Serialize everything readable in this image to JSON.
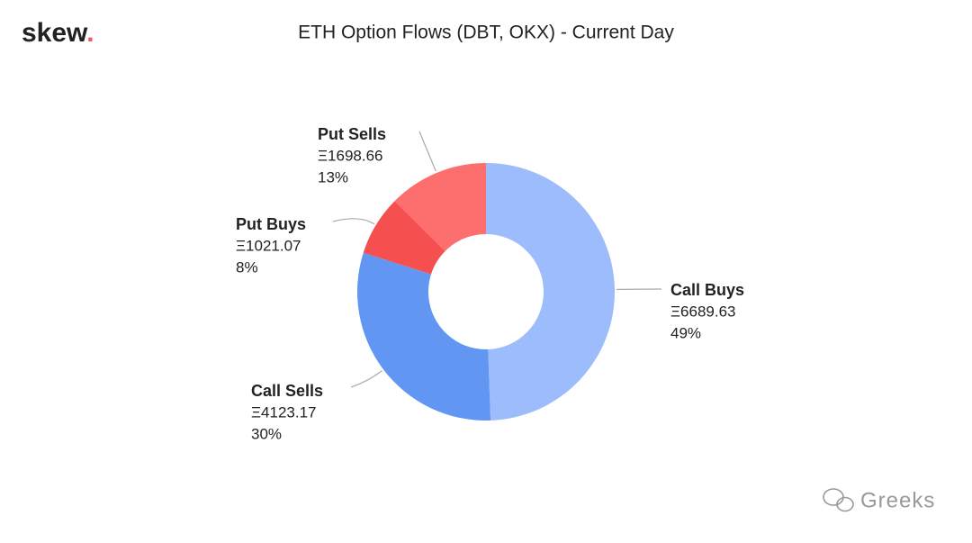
{
  "brand": {
    "name": "skew",
    "dot": "."
  },
  "watermark": "Greeks",
  "chart_data": {
    "type": "pie",
    "donut": true,
    "title": "ETH Option Flows (DBT, OKX) - Current Day",
    "categories": [
      "Call Buys",
      "Call Sells",
      "Put Buys",
      "Put Sells"
    ],
    "values": [
      6689.63,
      4123.17,
      1021.07,
      1698.66
    ],
    "value_labels": [
      "Ξ6689.63",
      "Ξ4123.17",
      "Ξ1021.07",
      "Ξ1698.66"
    ],
    "percent_labels": [
      "49%",
      "30%",
      "8%",
      "13%"
    ],
    "colors": [
      "#9dbcfb",
      "#6197f3",
      "#f5504f",
      "#fd6f6f"
    ]
  }
}
